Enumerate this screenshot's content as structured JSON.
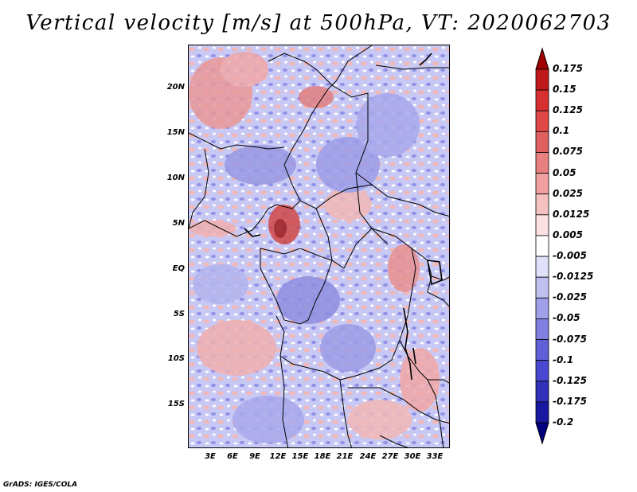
{
  "title": "Vertical velocity [m/s] at 500hPa, VT: 2020062703",
  "credit": "GrADS: IGES/COLA",
  "map": {
    "lat_labels": [
      "20N",
      "15N",
      "10N",
      "5N",
      "EQ",
      "5S",
      "10S",
      "15S"
    ],
    "lon_labels": [
      "3E",
      "6E",
      "9E",
      "12E",
      "15E",
      "18E",
      "21E",
      "24E",
      "27E",
      "30E",
      "33E"
    ]
  },
  "colorbar": {
    "labels": [
      "0.175",
      "0.15",
      "0.125",
      "0.1",
      "0.075",
      "0.05",
      "0.025",
      "0.0125",
      "0.005",
      "-0.005",
      "-0.0125",
      "-0.025",
      "-0.05",
      "-0.075",
      "-0.1",
      "-0.125",
      "-0.175",
      "-0.2"
    ],
    "colors": [
      "#a00000",
      "#c01818",
      "#d83030",
      "#e04848",
      "#e06060",
      "#e88080",
      "#f0a0a0",
      "#f4c0c0",
      "#fae0e0",
      "#ffffff",
      "#e0e0fa",
      "#c0c0f0",
      "#a0a0ea",
      "#8080e0",
      "#6060d8",
      "#4848d0",
      "#3030b8",
      "#1818a0",
      "#000080"
    ]
  }
}
